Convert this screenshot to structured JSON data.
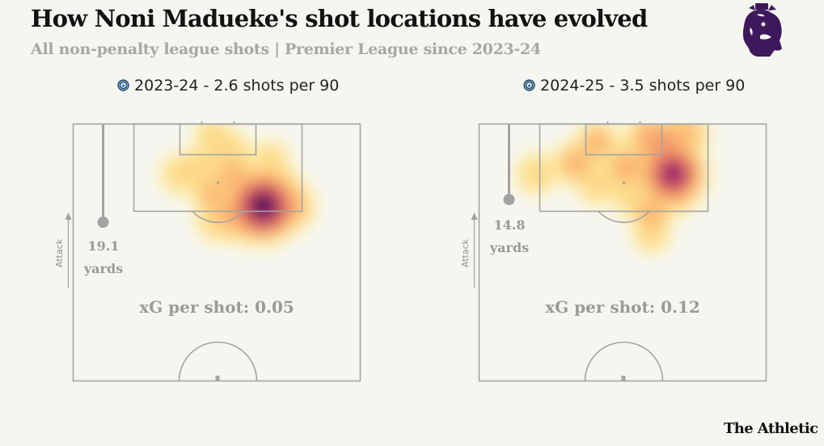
{
  "title": "How Noni Madueke's shot locations have evolved",
  "subtitle": "All non-penalty league shots | Premier League since 2023-24",
  "brand": "The Athletic",
  "attack_label": "Attack",
  "colors": {
    "background": "#f6f6f1",
    "pitch_line": "#a3a3a3",
    "distance_marker": "#a3a3a3",
    "density_scale": [
      "#fff7b0",
      "#fcd27f",
      "#f9a067",
      "#e8555a",
      "#b2276b",
      "#611a6d",
      "#1a0c38"
    ],
    "logo": "#3d195b",
    "badge": "#034694"
  },
  "icons": {
    "league_logo": "premier-league-lion-icon",
    "team_badge": "chelsea-badge-icon",
    "attack_direction": "arrow-up-icon"
  },
  "chart_data": [
    {
      "type": "heatmap",
      "title": "2023-24 - 2.6 shots per 90",
      "season": "2023-24",
      "shots_per_90": 2.6,
      "xg_per_shot_label": "xG per shot: 0.05",
      "xg_per_shot": 0.05,
      "avg_distance_value": "19.1",
      "avg_distance_unit": "yards",
      "avg_distance_yards": 19.1,
      "density_hotspots": [
        {
          "x": 23,
          "y": 53,
          "weight": 1.0
        },
        {
          "x": 25,
          "y": 46,
          "weight": 0.55
        },
        {
          "x": 23,
          "y": 60,
          "weight": 0.45
        },
        {
          "x": 18,
          "y": 52,
          "weight": 0.3
        },
        {
          "x": 15,
          "y": 45,
          "weight": 0.35
        },
        {
          "x": 27,
          "y": 40,
          "weight": 0.22
        },
        {
          "x": 20,
          "y": 39,
          "weight": 0.25
        },
        {
          "x": 8,
          "y": 44,
          "weight": 0.2
        },
        {
          "x": 3,
          "y": 39,
          "weight": 0.12
        },
        {
          "x": 14,
          "y": 30,
          "weight": 0.2
        },
        {
          "x": 12,
          "y": 36,
          "weight": 0.22
        },
        {
          "x": 28,
          "y": 48,
          "weight": 0.18
        },
        {
          "x": 18,
          "y": 58,
          "weight": 0.25
        },
        {
          "x": 10,
          "y": 55,
          "weight": 0.12
        }
      ]
    },
    {
      "type": "heatmap",
      "title": "2024-25 - 3.5 shots per 90",
      "season": "2024-25",
      "shots_per_90": 3.5,
      "xg_per_shot_label": "xG per shot: 0.12",
      "xg_per_shot": 0.12,
      "avg_distance_value": "14.8",
      "avg_distance_unit": "yards",
      "avg_distance_yards": 14.8,
      "density_hotspots": [
        {
          "x": 14,
          "y": 54,
          "weight": 0.85
        },
        {
          "x": 8,
          "y": 52,
          "weight": 0.7
        },
        {
          "x": 4,
          "y": 48,
          "weight": 0.45
        },
        {
          "x": 3,
          "y": 57,
          "weight": 0.4
        },
        {
          "x": 12,
          "y": 41,
          "weight": 0.35
        },
        {
          "x": 11,
          "y": 27,
          "weight": 0.3
        },
        {
          "x": 14,
          "y": 16,
          "weight": 0.2
        },
        {
          "x": 19,
          "y": 55,
          "weight": 0.3
        },
        {
          "x": 20,
          "y": 43,
          "weight": 0.22
        },
        {
          "x": 25,
          "y": 48,
          "weight": 0.25
        },
        {
          "x": 31,
          "y": 48,
          "weight": 0.12
        },
        {
          "x": 17,
          "y": 33,
          "weight": 0.2
        },
        {
          "x": 5,
          "y": 33,
          "weight": 0.25
        }
      ]
    }
  ]
}
